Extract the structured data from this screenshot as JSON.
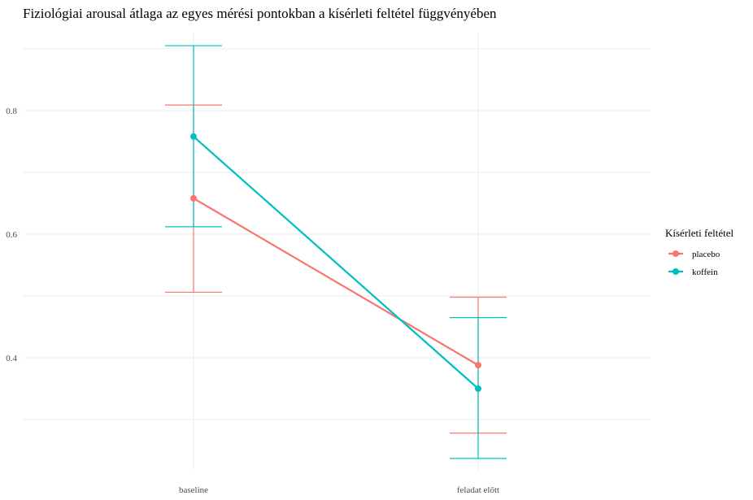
{
  "chart_data": {
    "type": "line",
    "title": "Fiziológiai arousal átlaga az egyes mérési pontokban a kísérleti feltétel függvényében",
    "xlabel": "",
    "ylabel": "",
    "categories": [
      "baseline",
      "feladat előtt"
    ],
    "ylim": [
      0.22,
      0.93
    ],
    "yticks": [
      0.4,
      0.6,
      0.8
    ],
    "ytick_labels": [
      "0.4",
      "0.6",
      "0.8"
    ],
    "grid": true,
    "legend": {
      "title": "Kísérleti feltétel",
      "position": "right"
    },
    "series": [
      {
        "name": "placebo",
        "color": "#F8766D",
        "values": [
          0.658,
          0.388
        ],
        "error_low": [
          0.506,
          0.278
        ],
        "error_high": [
          0.809,
          0.498
        ]
      },
      {
        "name": "koffein",
        "color": "#00BFC4",
        "values": [
          0.758,
          0.35
        ],
        "error_low": [
          0.612,
          0.237
        ],
        "error_high": [
          0.905,
          0.465
        ]
      }
    ]
  }
}
